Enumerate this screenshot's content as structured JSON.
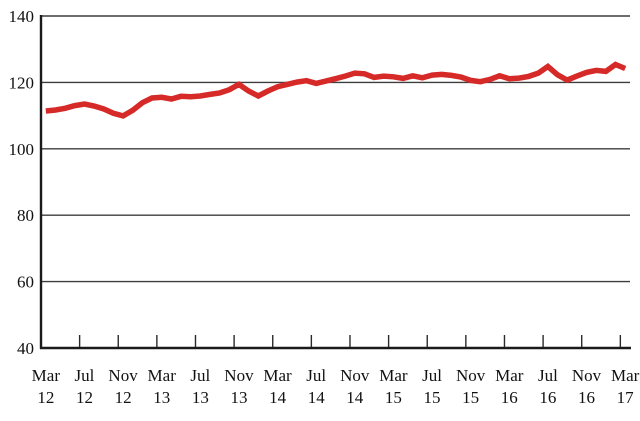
{
  "chart_data": {
    "type": "line",
    "title": "",
    "xlabel": "",
    "ylabel": "",
    "frequency": "monthly",
    "x_start": "Mar 2012",
    "x_end": "Mar 2017",
    "ylim": [
      40,
      140
    ],
    "y_ticks": [
      140,
      120,
      100,
      80,
      60,
      40
    ],
    "grid": "horizontal",
    "legend": "none",
    "x_tick_labels": [
      {
        "month": "Mar",
        "year": "12"
      },
      {
        "month": "Jul",
        "year": "12"
      },
      {
        "month": "Nov",
        "year": "12"
      },
      {
        "month": "Mar",
        "year": "13"
      },
      {
        "month": "Jul",
        "year": "13"
      },
      {
        "month": "Nov",
        "year": "13"
      },
      {
        "month": "Mar",
        "year": "14"
      },
      {
        "month": "Jul",
        "year": "14"
      },
      {
        "month": "Nov",
        "year": "14"
      },
      {
        "month": "Mar",
        "year": "15"
      },
      {
        "month": "Jul",
        "year": "15"
      },
      {
        "month": "Nov",
        "year": "15"
      },
      {
        "month": "Mar",
        "year": "16"
      },
      {
        "month": "Jul",
        "year": "16"
      },
      {
        "month": "Nov",
        "year": "16"
      },
      {
        "month": "Mar",
        "year": "17"
      }
    ],
    "x": [
      "Mar-12",
      "Apr-12",
      "May-12",
      "Jun-12",
      "Jul-12",
      "Aug-12",
      "Sep-12",
      "Oct-12",
      "Nov-12",
      "Dec-12",
      "Jan-13",
      "Feb-13",
      "Mar-13",
      "Apr-13",
      "May-13",
      "Jun-13",
      "Jul-13",
      "Aug-13",
      "Sep-13",
      "Oct-13",
      "Nov-13",
      "Dec-13",
      "Jan-14",
      "Feb-14",
      "Mar-14",
      "Apr-14",
      "May-14",
      "Jun-14",
      "Jul-14",
      "Aug-14",
      "Sep-14",
      "Oct-14",
      "Nov-14",
      "Dec-14",
      "Jan-15",
      "Feb-15",
      "Mar-15",
      "Apr-15",
      "May-15",
      "Jun-15",
      "Jul-15",
      "Aug-15",
      "Sep-15",
      "Oct-15",
      "Nov-15",
      "Dec-15",
      "Jan-16",
      "Feb-16",
      "Mar-16",
      "Apr-16",
      "May-16",
      "Jun-16",
      "Jul-16",
      "Aug-16",
      "Sep-16",
      "Oct-16",
      "Nov-16",
      "Dec-16",
      "Jan-17",
      "Feb-17",
      "Mar-17"
    ],
    "series": [
      {
        "name": "index-line",
        "color": "#d62a28",
        "values": [
          111.4,
          111.7,
          112.2,
          113.0,
          113.5,
          112.9,
          112.0,
          110.7,
          109.9,
          111.6,
          113.9,
          115.3,
          115.5,
          115.0,
          115.8,
          115.7,
          115.9,
          116.4,
          116.8,
          117.8,
          119.4,
          117.4,
          115.9,
          117.4,
          118.7,
          119.4,
          120.1,
          120.5,
          119.7,
          120.4,
          121.1,
          121.9,
          122.8,
          122.6,
          121.5,
          121.9,
          121.7,
          121.2,
          122.0,
          121.4,
          122.2,
          122.4,
          122.1,
          121.6,
          120.6,
          120.2,
          120.9,
          122.0,
          121.1,
          121.3,
          121.8,
          122.8,
          124.8,
          122.3,
          120.7,
          121.9,
          123.0,
          123.6,
          123.3,
          125.4,
          124.2
        ]
      }
    ]
  },
  "styles": {
    "line_color": "#d62a28",
    "axis_color": "#1a1a1a",
    "grid_color": "#3d3d3d",
    "tick_color": "#2a2a2a",
    "label_color": "#111111",
    "background": "#ffffff"
  },
  "layout_numbers": {
    "line_width": 5.5,
    "font_size": 17
  }
}
